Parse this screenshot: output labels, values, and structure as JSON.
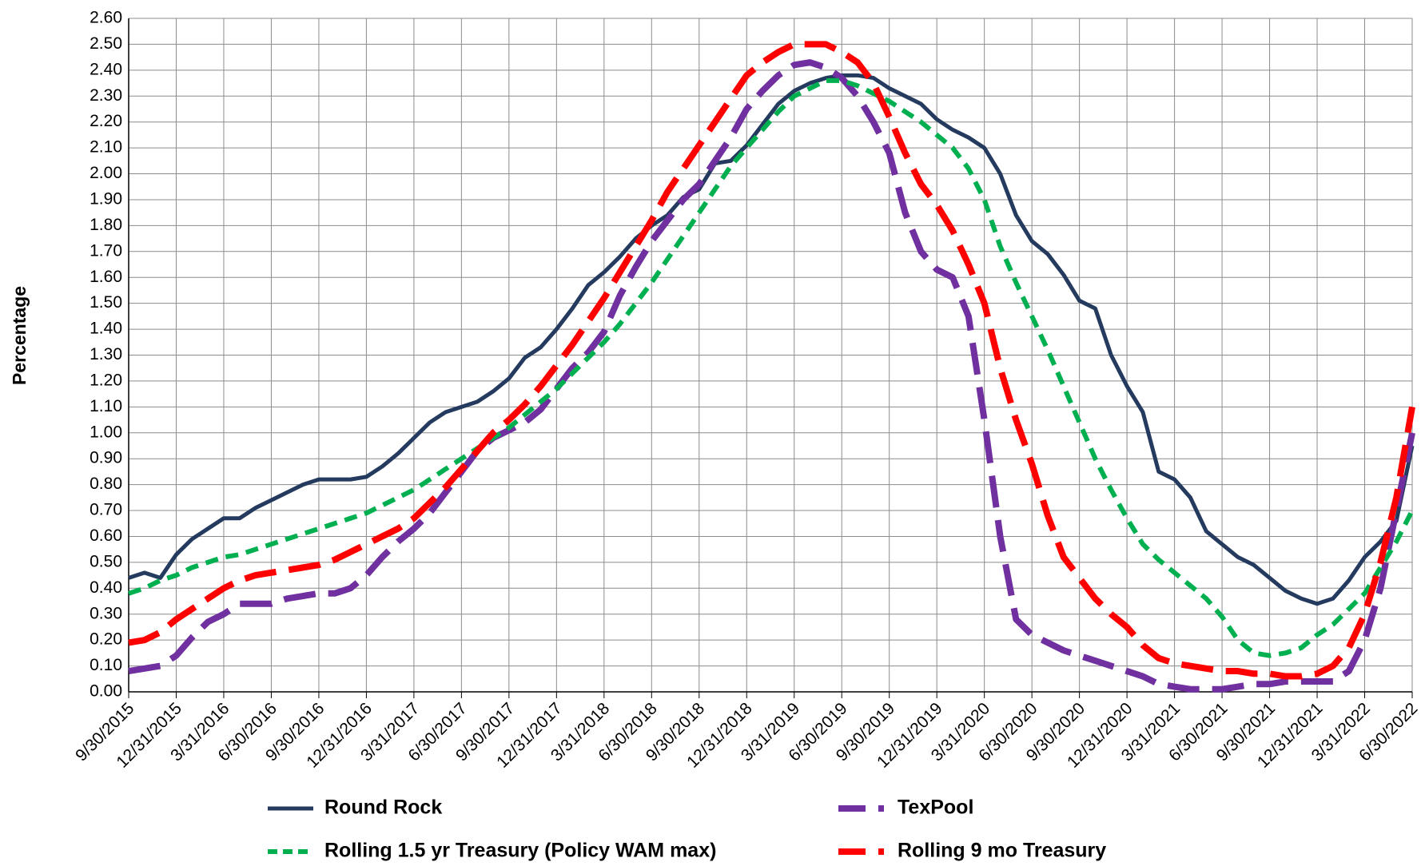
{
  "chart_data": {
    "type": "line",
    "y_label": "Percentage",
    "ylim": [
      0,
      2.6
    ],
    "yticks": [
      {
        "value": 0,
        "label": "0.00"
      },
      {
        "value": 0.1,
        "label": "0.10"
      },
      {
        "value": 0.2,
        "label": "0.20"
      },
      {
        "value": 0.3,
        "label": "0.30"
      },
      {
        "value": 0.4,
        "label": "0.40"
      },
      {
        "value": 0.5,
        "label": "0.50"
      },
      {
        "value": 0.6,
        "label": "0.60"
      },
      {
        "value": 0.7,
        "label": "0.70"
      },
      {
        "value": 0.8,
        "label": "0.80"
      },
      {
        "value": 0.9,
        "label": "0.90"
      },
      {
        "value": 1.0,
        "label": "1.00"
      },
      {
        "value": 1.1,
        "label": "1.10"
      },
      {
        "value": 1.2,
        "label": "1.20"
      },
      {
        "value": 1.3,
        "label": "1.30"
      },
      {
        "value": 1.4,
        "label": "1.40"
      },
      {
        "value": 1.5,
        "label": "1.50"
      },
      {
        "value": 1.6,
        "label": "1.60"
      },
      {
        "value": 1.7,
        "label": "1.70"
      },
      {
        "value": 1.8,
        "label": "1.80"
      },
      {
        "value": 1.9,
        "label": "1.90"
      },
      {
        "value": 2.0,
        "label": "2.00"
      },
      {
        "value": 2.1,
        "label": "2.10"
      },
      {
        "value": 2.2,
        "label": "2.20"
      },
      {
        "value": 2.3,
        "label": "2.30"
      },
      {
        "value": 2.4,
        "label": "2.40"
      },
      {
        "value": 2.5,
        "label": "2.50"
      },
      {
        "value": 2.6,
        "label": "2.60"
      }
    ],
    "grid": true,
    "categories": [
      "9/30/2015",
      null,
      null,
      "12/31/2015",
      null,
      null,
      "3/31/2016",
      null,
      null,
      "6/30/2016",
      null,
      null,
      "9/30/2016",
      null,
      null,
      "12/31/2016",
      null,
      null,
      "3/31/2017",
      null,
      null,
      "6/30/2017",
      null,
      null,
      "9/30/2017",
      null,
      null,
      "12/31/2017",
      null,
      null,
      "3/31/2018",
      null,
      null,
      "6/30/2018",
      null,
      null,
      "9/30/2018",
      null,
      null,
      "12/31/2018",
      null,
      null,
      "3/31/2019",
      null,
      null,
      "6/30/2019",
      null,
      null,
      "9/30/2019",
      null,
      null,
      "12/31/2019",
      null,
      null,
      "3/31/2020",
      null,
      null,
      "6/30/2020",
      null,
      null,
      "9/30/2020",
      null,
      null,
      "12/31/2020",
      null,
      null,
      "3/31/2021",
      null,
      null,
      "6/30/2021",
      null,
      null,
      "9/30/2021",
      null,
      null,
      "12/31/2021",
      null,
      null,
      "3/31/2022",
      null,
      null,
      "6/30/2022"
    ],
    "series": [
      {
        "name": "Round Rock",
        "color": "#243a5e",
        "dash": "solid",
        "values": [
          0.44,
          0.46,
          0.44,
          0.53,
          0.59,
          0.63,
          0.67,
          0.67,
          0.71,
          0.74,
          0.77,
          0.8,
          0.82,
          0.82,
          0.82,
          0.83,
          0.87,
          0.92,
          0.98,
          1.04,
          1.08,
          1.1,
          1.12,
          1.16,
          1.21,
          1.29,
          1.33,
          1.4,
          1.48,
          1.57,
          1.62,
          1.68,
          1.75,
          1.8,
          1.84,
          1.91,
          1.94,
          2.04,
          2.05,
          2.11,
          2.19,
          2.27,
          2.32,
          2.35,
          2.37,
          2.38,
          2.38,
          2.37,
          2.33,
          2.3,
          2.27,
          2.21,
          2.17,
          2.14,
          2.1,
          2.0,
          1.84,
          1.74,
          1.69,
          1.61,
          1.51,
          1.48,
          1.3,
          1.18,
          1.08,
          0.85,
          0.82,
          0.75,
          0.62,
          0.57,
          0.52,
          0.49,
          0.44,
          0.39,
          0.36,
          0.34,
          0.36,
          0.43,
          0.52,
          0.58,
          0.66,
          0.95
        ]
      },
      {
        "name": "TexPool",
        "color": "#7030a0",
        "dash": "long",
        "values": [
          0.08,
          0.09,
          0.1,
          0.14,
          0.21,
          0.27,
          0.3,
          0.34,
          0.34,
          0.34,
          0.36,
          0.37,
          0.38,
          0.38,
          0.4,
          0.45,
          0.52,
          0.58,
          0.63,
          0.69,
          0.77,
          0.85,
          0.93,
          0.98,
          1.01,
          1.04,
          1.09,
          1.17,
          1.25,
          1.31,
          1.39,
          1.53,
          1.64,
          1.74,
          1.82,
          1.9,
          1.96,
          2.05,
          2.14,
          2.25,
          2.32,
          2.38,
          2.42,
          2.43,
          2.41,
          2.37,
          2.3,
          2.2,
          2.08,
          1.85,
          1.7,
          1.63,
          1.6,
          1.45,
          1.05,
          0.6,
          0.28,
          0.22,
          0.19,
          0.16,
          0.14,
          0.12,
          0.1,
          0.08,
          0.06,
          0.03,
          0.02,
          0.01,
          0.01,
          0.01,
          0.02,
          0.03,
          0.03,
          0.04,
          0.04,
          0.04,
          0.04,
          0.08,
          0.2,
          0.4,
          0.7,
          1.0
        ]
      },
      {
        "name": "Rolling 1.5 yr Treasury (Policy WAM max)",
        "color": "#00b050",
        "dash": "short",
        "values": [
          0.38,
          0.4,
          0.43,
          0.45,
          0.48,
          0.5,
          0.52,
          0.53,
          0.55,
          0.57,
          0.59,
          0.61,
          0.63,
          0.65,
          0.67,
          0.69,
          0.72,
          0.75,
          0.78,
          0.82,
          0.86,
          0.9,
          0.94,
          0.98,
          1.02,
          1.07,
          1.12,
          1.17,
          1.23,
          1.29,
          1.35,
          1.42,
          1.5,
          1.58,
          1.67,
          1.76,
          1.85,
          1.94,
          2.03,
          2.1,
          2.17,
          2.24,
          2.3,
          2.33,
          2.36,
          2.36,
          2.34,
          2.31,
          2.28,
          2.24,
          2.2,
          2.15,
          2.1,
          2.02,
          1.9,
          1.72,
          1.58,
          1.45,
          1.32,
          1.18,
          1.04,
          0.9,
          0.78,
          0.67,
          0.57,
          0.51,
          0.46,
          0.41,
          0.36,
          0.29,
          0.2,
          0.15,
          0.14,
          0.15,
          0.17,
          0.22,
          0.26,
          0.32,
          0.38,
          0.48,
          0.58,
          0.7
        ]
      },
      {
        "name": "Rolling 9 mo Treasury",
        "color": "#ff0000",
        "dash": "long",
        "values": [
          0.19,
          0.2,
          0.23,
          0.28,
          0.32,
          0.36,
          0.4,
          0.43,
          0.45,
          0.46,
          0.47,
          0.48,
          0.49,
          0.51,
          0.54,
          0.57,
          0.6,
          0.63,
          0.67,
          0.73,
          0.79,
          0.86,
          0.93,
          1.0,
          1.05,
          1.11,
          1.18,
          1.26,
          1.34,
          1.43,
          1.52,
          1.62,
          1.72,
          1.82,
          1.93,
          2.02,
          2.11,
          2.2,
          2.29,
          2.38,
          2.43,
          2.47,
          2.5,
          2.5,
          2.5,
          2.47,
          2.43,
          2.35,
          2.22,
          2.08,
          1.96,
          1.88,
          1.78,
          1.65,
          1.5,
          1.25,
          1.05,
          0.88,
          0.68,
          0.52,
          0.44,
          0.36,
          0.3,
          0.25,
          0.18,
          0.13,
          0.11,
          0.1,
          0.09,
          0.08,
          0.08,
          0.07,
          0.07,
          0.06,
          0.06,
          0.07,
          0.1,
          0.17,
          0.3,
          0.5,
          0.75,
          1.1
        ]
      }
    ]
  }
}
